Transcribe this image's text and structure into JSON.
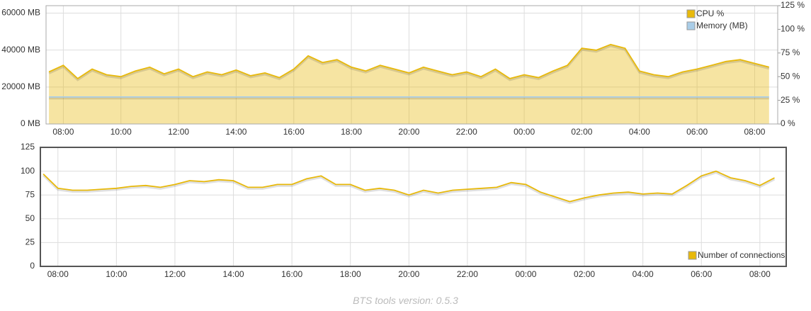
{
  "chart_data": [
    {
      "type": "area",
      "legend": "top-right",
      "grid": true,
      "x": [
        7.5,
        8,
        8.5,
        9,
        9.5,
        10,
        10.5,
        11,
        11.5,
        12,
        12.5,
        13,
        13.5,
        14,
        14.5,
        15,
        15.5,
        16,
        16.5,
        17,
        17.5,
        18,
        18.5,
        19,
        19.5,
        20,
        20.5,
        21,
        21.5,
        22,
        22.5,
        23,
        23.5,
        24,
        24.5,
        25,
        25.5,
        26,
        26.5,
        27,
        27.5,
        28,
        28.5,
        29,
        29.5,
        30,
        30.5,
        31,
        31.5,
        32,
        32.5
      ],
      "xlim": [
        7.4,
        32.8
      ],
      "xticks": [
        {
          "value": 8,
          "label": "08:00"
        },
        {
          "value": 10,
          "label": "10:00"
        },
        {
          "value": 12,
          "label": "12:00"
        },
        {
          "value": 14,
          "label": "14:00"
        },
        {
          "value": 16,
          "label": "16:00"
        },
        {
          "value": 18,
          "label": "18:00"
        },
        {
          "value": 20,
          "label": "20:00"
        },
        {
          "value": 22,
          "label": "22:00"
        },
        {
          "value": 24,
          "label": "00:00"
        },
        {
          "value": 26,
          "label": "02:00"
        },
        {
          "value": 28,
          "label": "04:00"
        },
        {
          "value": 30,
          "label": "06:00"
        },
        {
          "value": 32,
          "label": "08:00"
        }
      ],
      "ylim": [
        0,
        64000
      ],
      "yticks": [
        {
          "value": 0,
          "label": "0 MB"
        },
        {
          "value": 20000,
          "label": "20000 MB"
        },
        {
          "value": 40000,
          "label": "40000 MB"
        },
        {
          "value": 60000,
          "label": "60000 MB"
        }
      ],
      "y2lim": [
        0,
        125
      ],
      "y2ticks": [
        {
          "value": 0,
          "label": "0 %"
        },
        {
          "value": 25,
          "label": "25 %"
        },
        {
          "value": 50,
          "label": "50 %"
        },
        {
          "value": 75,
          "label": "75 %"
        },
        {
          "value": 100,
          "label": "100 %"
        },
        {
          "value": 125,
          "label": "125 %"
        }
      ],
      "series": [
        {
          "name": "CPU %",
          "color": "#e8b90b",
          "axis": "y2",
          "values": [
            55,
            62,
            48,
            58,
            52,
            50,
            56,
            60,
            53,
            58,
            50,
            55,
            52,
            57,
            51,
            54,
            49,
            58,
            72,
            65,
            68,
            60,
            56,
            62,
            58,
            54,
            60,
            56,
            52,
            55,
            50,
            58,
            48,
            52,
            49,
            56,
            62,
            80,
            78,
            84,
            80,
            56,
            52,
            50,
            55,
            58,
            62,
            66,
            68,
            64,
            60
          ]
        },
        {
          "name": "Memory (MB)",
          "color": "#a9cde8",
          "values": [
            14600,
            14600,
            14600,
            14600,
            14600,
            14600,
            14600,
            14600,
            14600,
            14600,
            14600,
            14600,
            14600,
            14600,
            14600,
            14600,
            14600,
            14600,
            14600,
            14600,
            14600,
            14600,
            14600,
            14600,
            14600,
            14600,
            14600,
            14600,
            14600,
            14600,
            14600,
            14600,
            14600,
            14600,
            14600,
            14600,
            14600,
            14600,
            14600,
            14600,
            14600,
            14600,
            14600,
            14600,
            14600,
            14600,
            14600,
            14600,
            14600,
            14600,
            14600
          ]
        }
      ]
    },
    {
      "type": "line",
      "legend": "bottom-right",
      "grid": true,
      "x": [
        7.5,
        8,
        8.5,
        9,
        9.5,
        10,
        10.5,
        11,
        11.5,
        12,
        12.5,
        13,
        13.5,
        14,
        14.5,
        15,
        15.5,
        16,
        16.5,
        17,
        17.5,
        18,
        18.5,
        19,
        19.5,
        20,
        20.5,
        21,
        21.5,
        22,
        22.5,
        23,
        23.5,
        24,
        24.5,
        25,
        25.5,
        26,
        26.5,
        27,
        27.5,
        28,
        28.5,
        29,
        29.5,
        30,
        30.5,
        31,
        31.5,
        32,
        32.5
      ],
      "xlim": [
        7.4,
        32.9
      ],
      "xticks": [
        {
          "value": 8,
          "label": "08:00"
        },
        {
          "value": 10,
          "label": "10:00"
        },
        {
          "value": 12,
          "label": "12:00"
        },
        {
          "value": 14,
          "label": "14:00"
        },
        {
          "value": 16,
          "label": "16:00"
        },
        {
          "value": 18,
          "label": "18:00"
        },
        {
          "value": 20,
          "label": "20:00"
        },
        {
          "value": 22,
          "label": "22:00"
        },
        {
          "value": 24,
          "label": "00:00"
        },
        {
          "value": 26,
          "label": "02:00"
        },
        {
          "value": 28,
          "label": "04:00"
        },
        {
          "value": 30,
          "label": "06:00"
        },
        {
          "value": 32,
          "label": "08:00"
        }
      ],
      "ylim": [
        0,
        125
      ],
      "yticks": [
        0,
        25,
        50,
        75,
        100,
        125
      ],
      "series": [
        {
          "name": "Number of connections",
          "color": "#e8b90b",
          "values": [
            97,
            82,
            80,
            80,
            81,
            82,
            84,
            85,
            83,
            86,
            90,
            89,
            91,
            90,
            83,
            83,
            86,
            86,
            92,
            95,
            86,
            86,
            80,
            82,
            80,
            75,
            80,
            77,
            80,
            81,
            82,
            83,
            88,
            86,
            78,
            73,
            68,
            72,
            75,
            77,
            78,
            76,
            77,
            76,
            85,
            95,
            100,
            93,
            90,
            85,
            93
          ]
        }
      ]
    }
  ],
  "footer": "BTS tools version: 0.5.3"
}
